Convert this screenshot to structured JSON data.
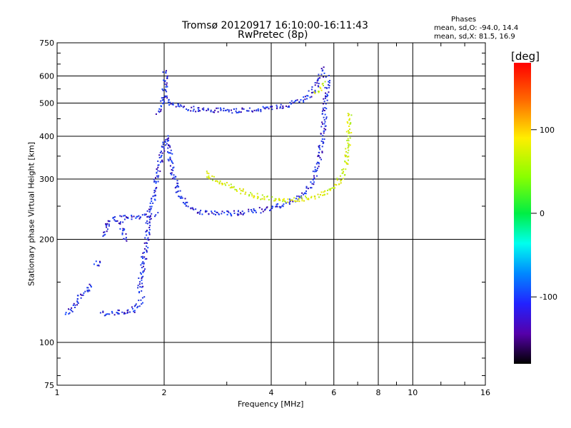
{
  "title_line1": "Tromsø 20120917 16:10:00-16:11:43",
  "title_line2": "RwPretec (8p)",
  "phases": {
    "heading": "Phases",
    "line_o": "mean, sd,O: -94.0, 14.4",
    "line_x": "mean, sd,X:  81.5, 16.9"
  },
  "colorbar": {
    "label": "[deg]",
    "ticks": [
      "100",
      "0",
      "-100"
    ],
    "tick_values": [
      100,
      0,
      -100
    ],
    "range": [
      -180,
      180
    ]
  },
  "colors": {
    "o_trace": "#2233dd",
    "o_trace_dark": "#3300aa",
    "x_trace": "#ccee11",
    "x_trace_alt": "#eeee00",
    "grid": "#000000"
  },
  "chart_data": {
    "type": "scatter",
    "title": "Tromsø 20120917 16:10:00-16:11:43",
    "subtitle": "RwPretec (8p)",
    "xlabel": "Frequency [MHz]",
    "ylabel": "Stationary phase Virtual Height [km]",
    "x_scale": "log",
    "y_scale": "log",
    "xlim": [
      1,
      16
    ],
    "ylim": [
      75,
      750
    ],
    "x_ticks": [
      1,
      2,
      4,
      6,
      8,
      10,
      16
    ],
    "y_ticks": [
      75,
      100,
      200,
      300,
      400,
      500,
      600,
      750
    ],
    "grid": true,
    "series": [
      {
        "name": "O",
        "phase_mean": -94.0,
        "phase_sd": 14.4,
        "traces": [
          [
            [
              1.05,
              122
            ],
            [
              1.1,
              126
            ],
            [
              1.15,
              136
            ],
            [
              1.2,
              142
            ],
            [
              1.25,
              150
            ]
          ],
          [
            [
              1.28,
              168
            ],
            [
              1.32,
              175
            ]
          ],
          [
            [
              1.35,
              205
            ],
            [
              1.38,
              220
            ],
            [
              1.42,
              232
            ],
            [
              1.45,
              228
            ],
            [
              1.5,
              222
            ],
            [
              1.53,
              210
            ],
            [
              1.55,
              198
            ]
          ],
          [
            [
              1.33,
              122
            ],
            [
              1.4,
              122
            ],
            [
              1.5,
              123
            ],
            [
              1.6,
              123
            ],
            [
              1.65,
              126
            ],
            [
              1.7,
              130
            ],
            [
              1.75,
              136
            ]
          ],
          [
            [
              1.5,
              232
            ],
            [
              1.6,
              233
            ],
            [
              1.7,
              235
            ],
            [
              1.8,
              236
            ],
            [
              1.9,
              238
            ]
          ],
          [
            [
              1.7,
              140
            ],
            [
              1.72,
              160
            ],
            [
              1.75,
              180
            ],
            [
              1.78,
              200
            ],
            [
              1.8,
              230
            ],
            [
              1.85,
              260
            ],
            [
              1.9,
              300
            ],
            [
              1.95,
              350
            ],
            [
              2.0,
              380
            ],
            [
              2.02,
              400
            ],
            [
              2.05,
              370
            ],
            [
              2.1,
              320
            ],
            [
              2.15,
              290
            ],
            [
              2.2,
              270
            ],
            [
              2.3,
              255
            ],
            [
              2.4,
              246
            ],
            [
              2.6,
              240
            ],
            [
              2.8,
              239
            ],
            [
              3.0,
              239
            ],
            [
              3.3,
              240
            ],
            [
              3.6,
              243
            ],
            [
              4.0,
              248
            ],
            [
              4.4,
              256
            ],
            [
              4.8,
              268
            ],
            [
              5.1,
              285
            ],
            [
              5.3,
              310
            ],
            [
              5.45,
              350
            ],
            [
              5.55,
              400
            ],
            [
              5.6,
              450
            ],
            [
              5.65,
              500
            ],
            [
              5.7,
              550
            ],
            [
              5.75,
              600
            ]
          ],
          [
            [
              2.0,
              520
            ],
            [
              2.05,
              510
            ],
            [
              2.15,
              495
            ],
            [
              2.4,
              482
            ],
            [
              2.8,
              478
            ],
            [
              3.2,
              478
            ],
            [
              3.6,
              480
            ],
            [
              4.0,
              485
            ],
            [
              4.4,
              495
            ],
            [
              4.8,
              510
            ],
            [
              5.1,
              530
            ],
            [
              5.3,
              555
            ],
            [
              5.45,
              590
            ],
            [
              5.55,
              625
            ],
            [
              5.6,
              640
            ]
          ],
          [
            [
              1.92,
              470
            ],
            [
              1.95,
              490
            ],
            [
              1.98,
              520
            ],
            [
              2.0,
              560
            ],
            [
              2.02,
              600
            ],
            [
              2.0,
              630
            ]
          ]
        ]
      },
      {
        "name": "X",
        "phase_mean": 81.5,
        "phase_sd": 16.9,
        "traces": [
          [
            [
              2.6,
              315
            ],
            [
              2.8,
              300
            ],
            [
              3.0,
              288
            ],
            [
              3.2,
              280
            ],
            [
              3.5,
              272
            ],
            [
              3.8,
              266
            ],
            [
              4.1,
              263
            ],
            [
              4.5,
              262
            ],
            [
              5.0,
              265
            ],
            [
              5.4,
              270
            ],
            [
              5.8,
              278
            ],
            [
              6.1,
              290
            ],
            [
              6.3,
              310
            ],
            [
              6.45,
              340
            ],
            [
              6.55,
              380
            ],
            [
              6.6,
              420
            ],
            [
              6.62,
              470
            ]
          ],
          [
            [
              5.3,
              540
            ],
            [
              5.45,
              555
            ],
            [
              5.55,
              565
            ],
            [
              5.65,
              580
            ]
          ]
        ]
      }
    ]
  }
}
